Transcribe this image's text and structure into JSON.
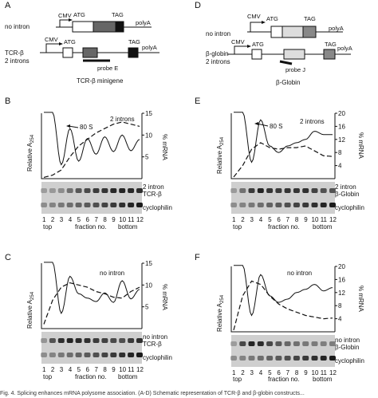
{
  "panels": {
    "A": {
      "letter": "A",
      "row1_label": "no intron",
      "row2_label_l1": "TCR-β",
      "row2_label_l2": "2 introns",
      "cmv": "CMV",
      "atg": "ATG",
      "tag": "TAG",
      "polya": "polyA",
      "probe": "probe E",
      "title": "TCR-β minigene"
    },
    "D": {
      "letter": "D",
      "row1_label": "no intron",
      "row2_label_l1": "β-globin",
      "row2_label_l2": "2 introns",
      "cmv": "CMV",
      "atg": "ATG",
      "tag": "TAG",
      "polya": "polyA",
      "probe": "probe J",
      "title": "β-Globin"
    },
    "B": {
      "letter": "B",
      "condition": "2 introns",
      "marker": "80 S",
      "ylabel": "Relative A",
      "ysub": "254",
      "rlabel": "% mRNA",
      "rticks": [
        "15",
        "10",
        "5"
      ],
      "blot1_l1": "2 intron",
      "blot1_l2": "TCR-β",
      "blot2": "cyclophilin",
      "top": "top",
      "fraction": "fraction no.",
      "bottom": "bottom"
    },
    "C": {
      "letter": "C",
      "condition": "no intron",
      "ylabel": "Relative A",
      "ysub": "254",
      "rlabel": "% mRNA",
      "rticks": [
        "15",
        "10",
        "5"
      ],
      "blot1_l1": "no intron",
      "blot1_l2": "TCR-β",
      "blot2": "cyclophilin",
      "top": "top",
      "fraction": "fraction no.",
      "bottom": "bottom"
    },
    "E": {
      "letter": "E",
      "condition": "2 introns",
      "marker": "80 S",
      "ylabel": "Relative A",
      "ysub": "254",
      "rlabel": "% mRNA",
      "rticks": [
        "20",
        "16",
        "12",
        "8",
        "4"
      ],
      "blot1_l1": "2 intron",
      "blot1_l2": "β-Globin",
      "blot2": "cyclophilin",
      "top": "top",
      "fraction": "fraction no.",
      "bottom": "bottom"
    },
    "F": {
      "letter": "F",
      "condition": "no intron",
      "ylabel": "Relative A",
      "ysub": "254",
      "rlabel": "% mRNA",
      "rticks": [
        "20",
        "16",
        "12",
        "8",
        "4"
      ],
      "blot1_l1": "no intron",
      "blot1_l2": "β-Globin",
      "blot2": "cyclophilin",
      "top": "top",
      "fraction": "fraction no.",
      "bottom": "bottom"
    }
  },
  "lanes": [
    "1",
    "2",
    "3",
    "4",
    "5",
    "6",
    "7",
    "8",
    "9",
    "10",
    "11",
    "12"
  ],
  "chart_data": [
    {
      "panel": "B",
      "type": "line",
      "x": [
        1,
        2,
        3,
        4,
        5,
        6,
        7,
        8,
        9,
        10,
        11,
        12
      ],
      "right_ylim": [
        0,
        15
      ],
      "series": [
        {
          "values": [
            15.2,
            15.2,
            3.2,
            11.5,
            4.0,
            9.2,
            5.6,
            9.6,
            6.2,
            10.0,
            6.4,
            9.0
          ]
        },
        {
          "values": [
            0.3,
            0.8,
            2.0,
            5.0,
            7.5,
            9.0,
            10.5,
            11.5,
            12.5,
            13.0,
            12.5,
            12.0
          ]
        }
      ]
    },
    {
      "panel": "C",
      "type": "line",
      "x": [
        1,
        2,
        3,
        4,
        5,
        6,
        7,
        8,
        9,
        10,
        11,
        12
      ],
      "right_ylim": [
        0,
        15
      ],
      "series": [
        {
          "values": [
            15.2,
            15.2,
            3.5,
            12.0,
            8.0,
            7.0,
            6.2,
            8.2,
            6.0,
            11.0,
            6.8,
            9.0
          ]
        },
        {
          "values": [
            1.0,
            6.5,
            9.5,
            10.5,
            10.0,
            9.5,
            8.5,
            8.0,
            7.2,
            7.0,
            8.5,
            9.5
          ]
        }
      ]
    },
    {
      "panel": "E",
      "type": "line",
      "x": [
        1,
        2,
        3,
        4,
        5,
        6,
        7,
        8,
        9,
        10,
        11,
        12
      ],
      "right_ylim": [
        0,
        20
      ],
      "series": [
        {
          "values": [
            20.3,
            20.3,
            5.0,
            18.0,
            10.0,
            8.0,
            10.0,
            11.0,
            12.0,
            14.5,
            13.5,
            13.5
          ]
        },
        {
          "values": [
            0.5,
            4.0,
            9.0,
            11.0,
            9.5,
            9.0,
            9.5,
            9.5,
            10.0,
            8.5,
            7.0,
            6.8
          ]
        }
      ]
    },
    {
      "panel": "F",
      "type": "line",
      "x": [
        1,
        2,
        3,
        4,
        5,
        6,
        7,
        8,
        9,
        10,
        11,
        12
      ],
      "right_ylim": [
        0,
        20
      ],
      "series": [
        {
          "values": [
            20.3,
            20.3,
            5.0,
            17.5,
            11.0,
            9.0,
            10.0,
            12.0,
            13.0,
            14.5,
            12.5,
            13.5
          ]
        },
        {
          "values": [
            0.5,
            11.0,
            15.5,
            14.5,
            11.0,
            8.5,
            7.0,
            6.0,
            5.0,
            4.5,
            4.0,
            4.2
          ]
        }
      ]
    }
  ],
  "caption": "Fig. 4. Splicing enhances mRNA polysome association. (A-D) Schematic representation of TCR-β and β-globin constructs..."
}
